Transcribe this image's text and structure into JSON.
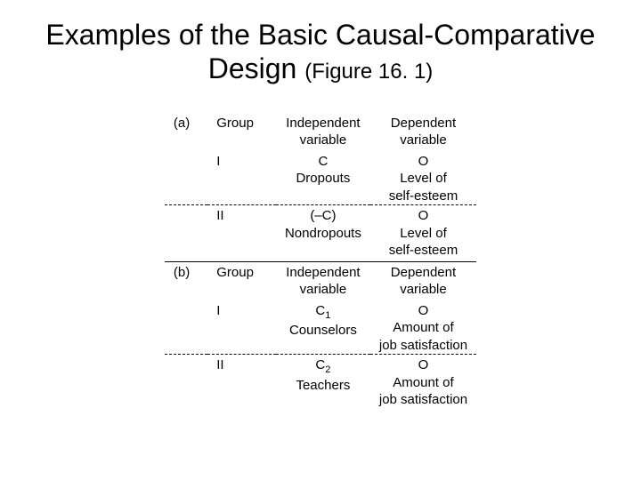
{
  "title_main": "Examples of the Basic Causal-Comparative Design",
  "title_figref": "(Figure 16. 1)",
  "hdr_group": "Group",
  "hdr_iv1": "Independent",
  "hdr_iv2": "variable",
  "hdr_dv1": "Dependent",
  "hdr_dv2": "variable",
  "panel_a": {
    "label": "(a)",
    "row1": {
      "group": "I",
      "iv1": "C",
      "iv2": "Dropouts",
      "dv1": "O",
      "dv2": "Level of",
      "dv3": "self-esteem"
    },
    "row2": {
      "group": "II",
      "iv1": "(–C)",
      "iv2": "Nondropouts",
      "dv1": "O",
      "dv2": "Level of",
      "dv3": "self-esteem"
    }
  },
  "panel_b": {
    "label": "(b)",
    "row1": {
      "group": "I",
      "iv1a": "C",
      "iv1b": "1",
      "iv2": "Counselors",
      "dv1": "O",
      "dv2": "Amount of",
      "dv3": "job satisfaction"
    },
    "row2": {
      "group": "II",
      "iv1a": "C",
      "iv1b": "2",
      "iv2": "Teachers",
      "dv1": "O",
      "dv2": "Amount of",
      "dv3": "job satisfaction"
    }
  }
}
